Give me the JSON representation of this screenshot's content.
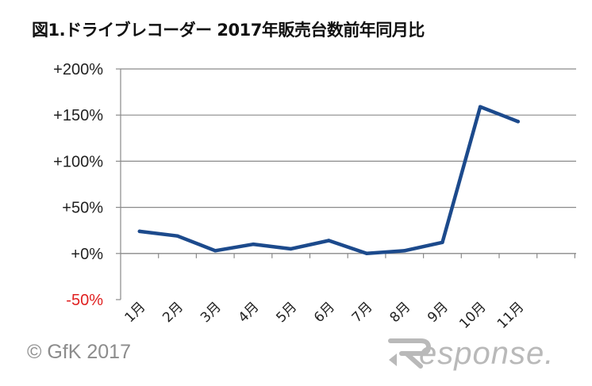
{
  "colors": {
    "line": "#1c4a8c",
    "negative_tick": "#e02020",
    "tick": "#222222",
    "grid": "#8a8a8a",
    "logo": "#b9b9b9",
    "copyright": "#8c8c8c"
  },
  "chart_data": {
    "type": "line",
    "title": "図1.ドライブレコーダー 2017年販売台数前年同月比",
    "categories": [
      "1月",
      "2月",
      "3月",
      "4月",
      "5月",
      "6月",
      "7月",
      "8月",
      "9月",
      "10月",
      "11月"
    ],
    "series": [
      {
        "values": [
          24,
          19,
          3,
          10,
          5,
          14,
          0,
          3,
          12,
          159,
          143
        ]
      }
    ],
    "yticks": [
      {
        "value": 200,
        "label": "+200%"
      },
      {
        "value": 150,
        "label": "+150%"
      },
      {
        "value": 100,
        "label": "+100%"
      },
      {
        "value": 50,
        "label": "+50%"
      },
      {
        "value": 0,
        "label": "+0%"
      },
      {
        "value": -50,
        "label": "-50%"
      }
    ],
    "ylim": [
      -50,
      200
    ],
    "xlabel": "",
    "ylabel": "",
    "grid": true,
    "legend": "none"
  },
  "footer": {
    "copyright": "© GfK 2017",
    "logo_text": "esponse."
  }
}
